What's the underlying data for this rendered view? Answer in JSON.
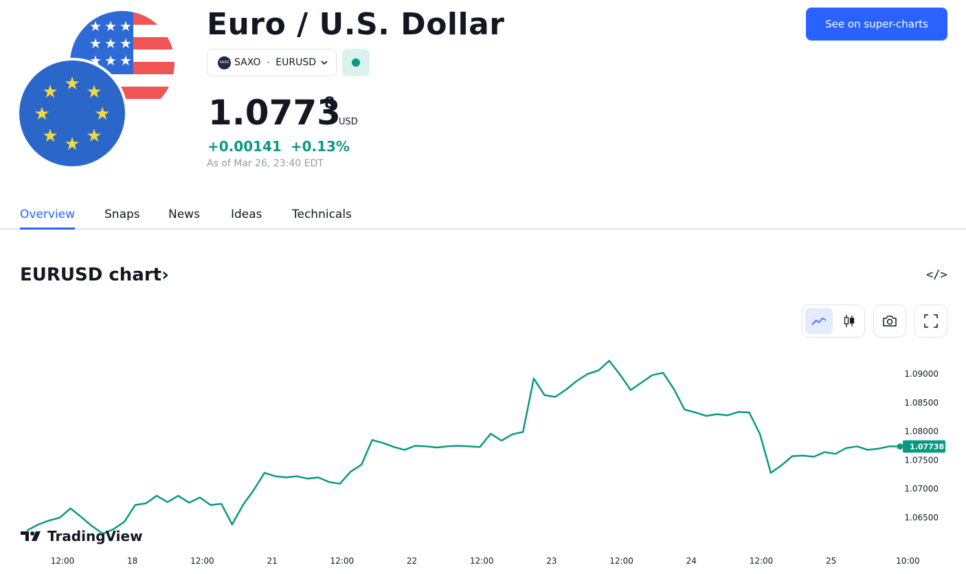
{
  "header": {
    "title": "Euro / U.S. Dollar",
    "exchange": "SAXO",
    "symbol": "EURUSD",
    "exchange_logo_text": "SAXO",
    "price_main": "1.0773",
    "price_sup": "8",
    "currency": "USD",
    "change_abs": "+0.00141",
    "change_pct": "+0.13%",
    "as_of": "As of Mar 26, 23:40 EDT",
    "cta_label": "See on super-charts"
  },
  "tabs": [
    {
      "label": "Overview"
    },
    {
      "label": "Snaps"
    },
    {
      "label": "News"
    },
    {
      "label": "Ideas"
    },
    {
      "label": "Technicals"
    }
  ],
  "chart_section": {
    "title": "EURUSD chart",
    "chevron": "›",
    "embed_glyph": "</>",
    "logo_text": "TradingView"
  },
  "colors": {
    "accent": "#2962ff",
    "positive": "#089981",
    "market_status": "#089981"
  },
  "icons": [
    "usa-flag-icon",
    "eu-flag-icon",
    "chevron-down-icon",
    "line-chart-icon",
    "candlestick-icon",
    "camera-icon",
    "fullscreen-icon",
    "embed-code-icon"
  ],
  "chart_data": {
    "type": "line",
    "x_tick_labels": [
      "12:00",
      "18",
      "12:00",
      "21",
      "12:00",
      "22",
      "12:00",
      "23",
      "12:00",
      "24",
      "12:00",
      "25",
      "10:00"
    ],
    "y_tick_labels": [
      "1.09000",
      "1.08500",
      "1.08000",
      "1.07500",
      "1.07000",
      "1.06500"
    ],
    "ylim": [
      1.0615,
      1.0935
    ],
    "last_value_label": "1.07738",
    "values": [
      1.0628,
      1.0638,
      1.0645,
      1.065,
      1.0666,
      1.0651,
      1.0635,
      1.0622,
      1.063,
      1.0643,
      1.0672,
      1.0675,
      1.0688,
      1.0677,
      1.0688,
      1.0676,
      1.0685,
      1.0672,
      1.0674,
      1.0638,
      1.0672,
      1.0698,
      1.0728,
      1.0722,
      1.072,
      1.0722,
      1.0718,
      1.072,
      1.0712,
      1.0709,
      1.073,
      1.0742,
      1.0785,
      1.078,
      1.0773,
      1.0768,
      1.0775,
      1.0774,
      1.0772,
      1.0774,
      1.0775,
      1.0774,
      1.0773,
      1.0796,
      1.0784,
      1.0795,
      1.0799,
      1.0892,
      1.0863,
      1.086,
      1.0873,
      1.0888,
      1.09,
      1.0906,
      1.0923,
      1.0899,
      1.0872,
      1.0885,
      1.0898,
      1.0902,
      1.0874,
      1.0838,
      1.0833,
      1.0827,
      1.083,
      1.0828,
      1.0834,
      1.0833,
      1.0795,
      1.0728,
      1.0741,
      1.0757,
      1.0758,
      1.0756,
      1.0764,
      1.0761,
      1.0771,
      1.0774,
      1.0768,
      1.077,
      1.0774,
      1.07738
    ]
  }
}
